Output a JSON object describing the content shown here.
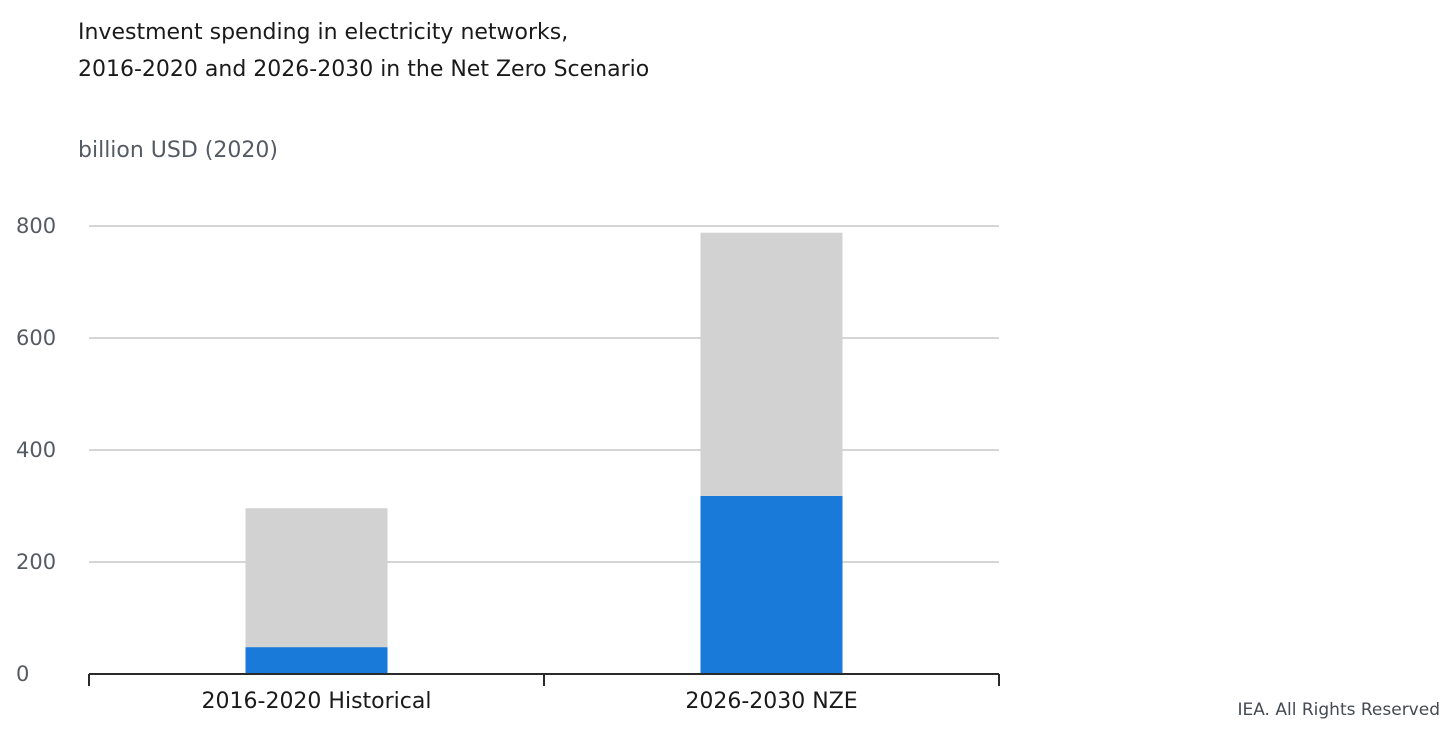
{
  "title_lines": [
    "Investment spending in electricity networks,",
    "2016-2020 and 2026-2030 in the Net Zero Scenario"
  ],
  "credit": "IEA. All Rights Reserved",
  "chart_data": {
    "type": "bar",
    "stacked": true,
    "title": "Investment spending in electricity networks, 2016-2020 and 2026-2030 in the Net Zero Scenario",
    "ylabel": "billion USD (2020)",
    "xlabel": "",
    "categories": [
      "2016-2020 Historical",
      "2026-2030 NZE"
    ],
    "ylim": [
      0,
      800
    ],
    "yticks": [
      0,
      200,
      400,
      600,
      800
    ],
    "grid": true,
    "series": [
      {
        "color": "#1a7ad9",
        "values": [
          48,
          318
        ]
      },
      {
        "color": "#d2d2d2",
        "values": [
          248,
          470
        ]
      }
    ]
  }
}
